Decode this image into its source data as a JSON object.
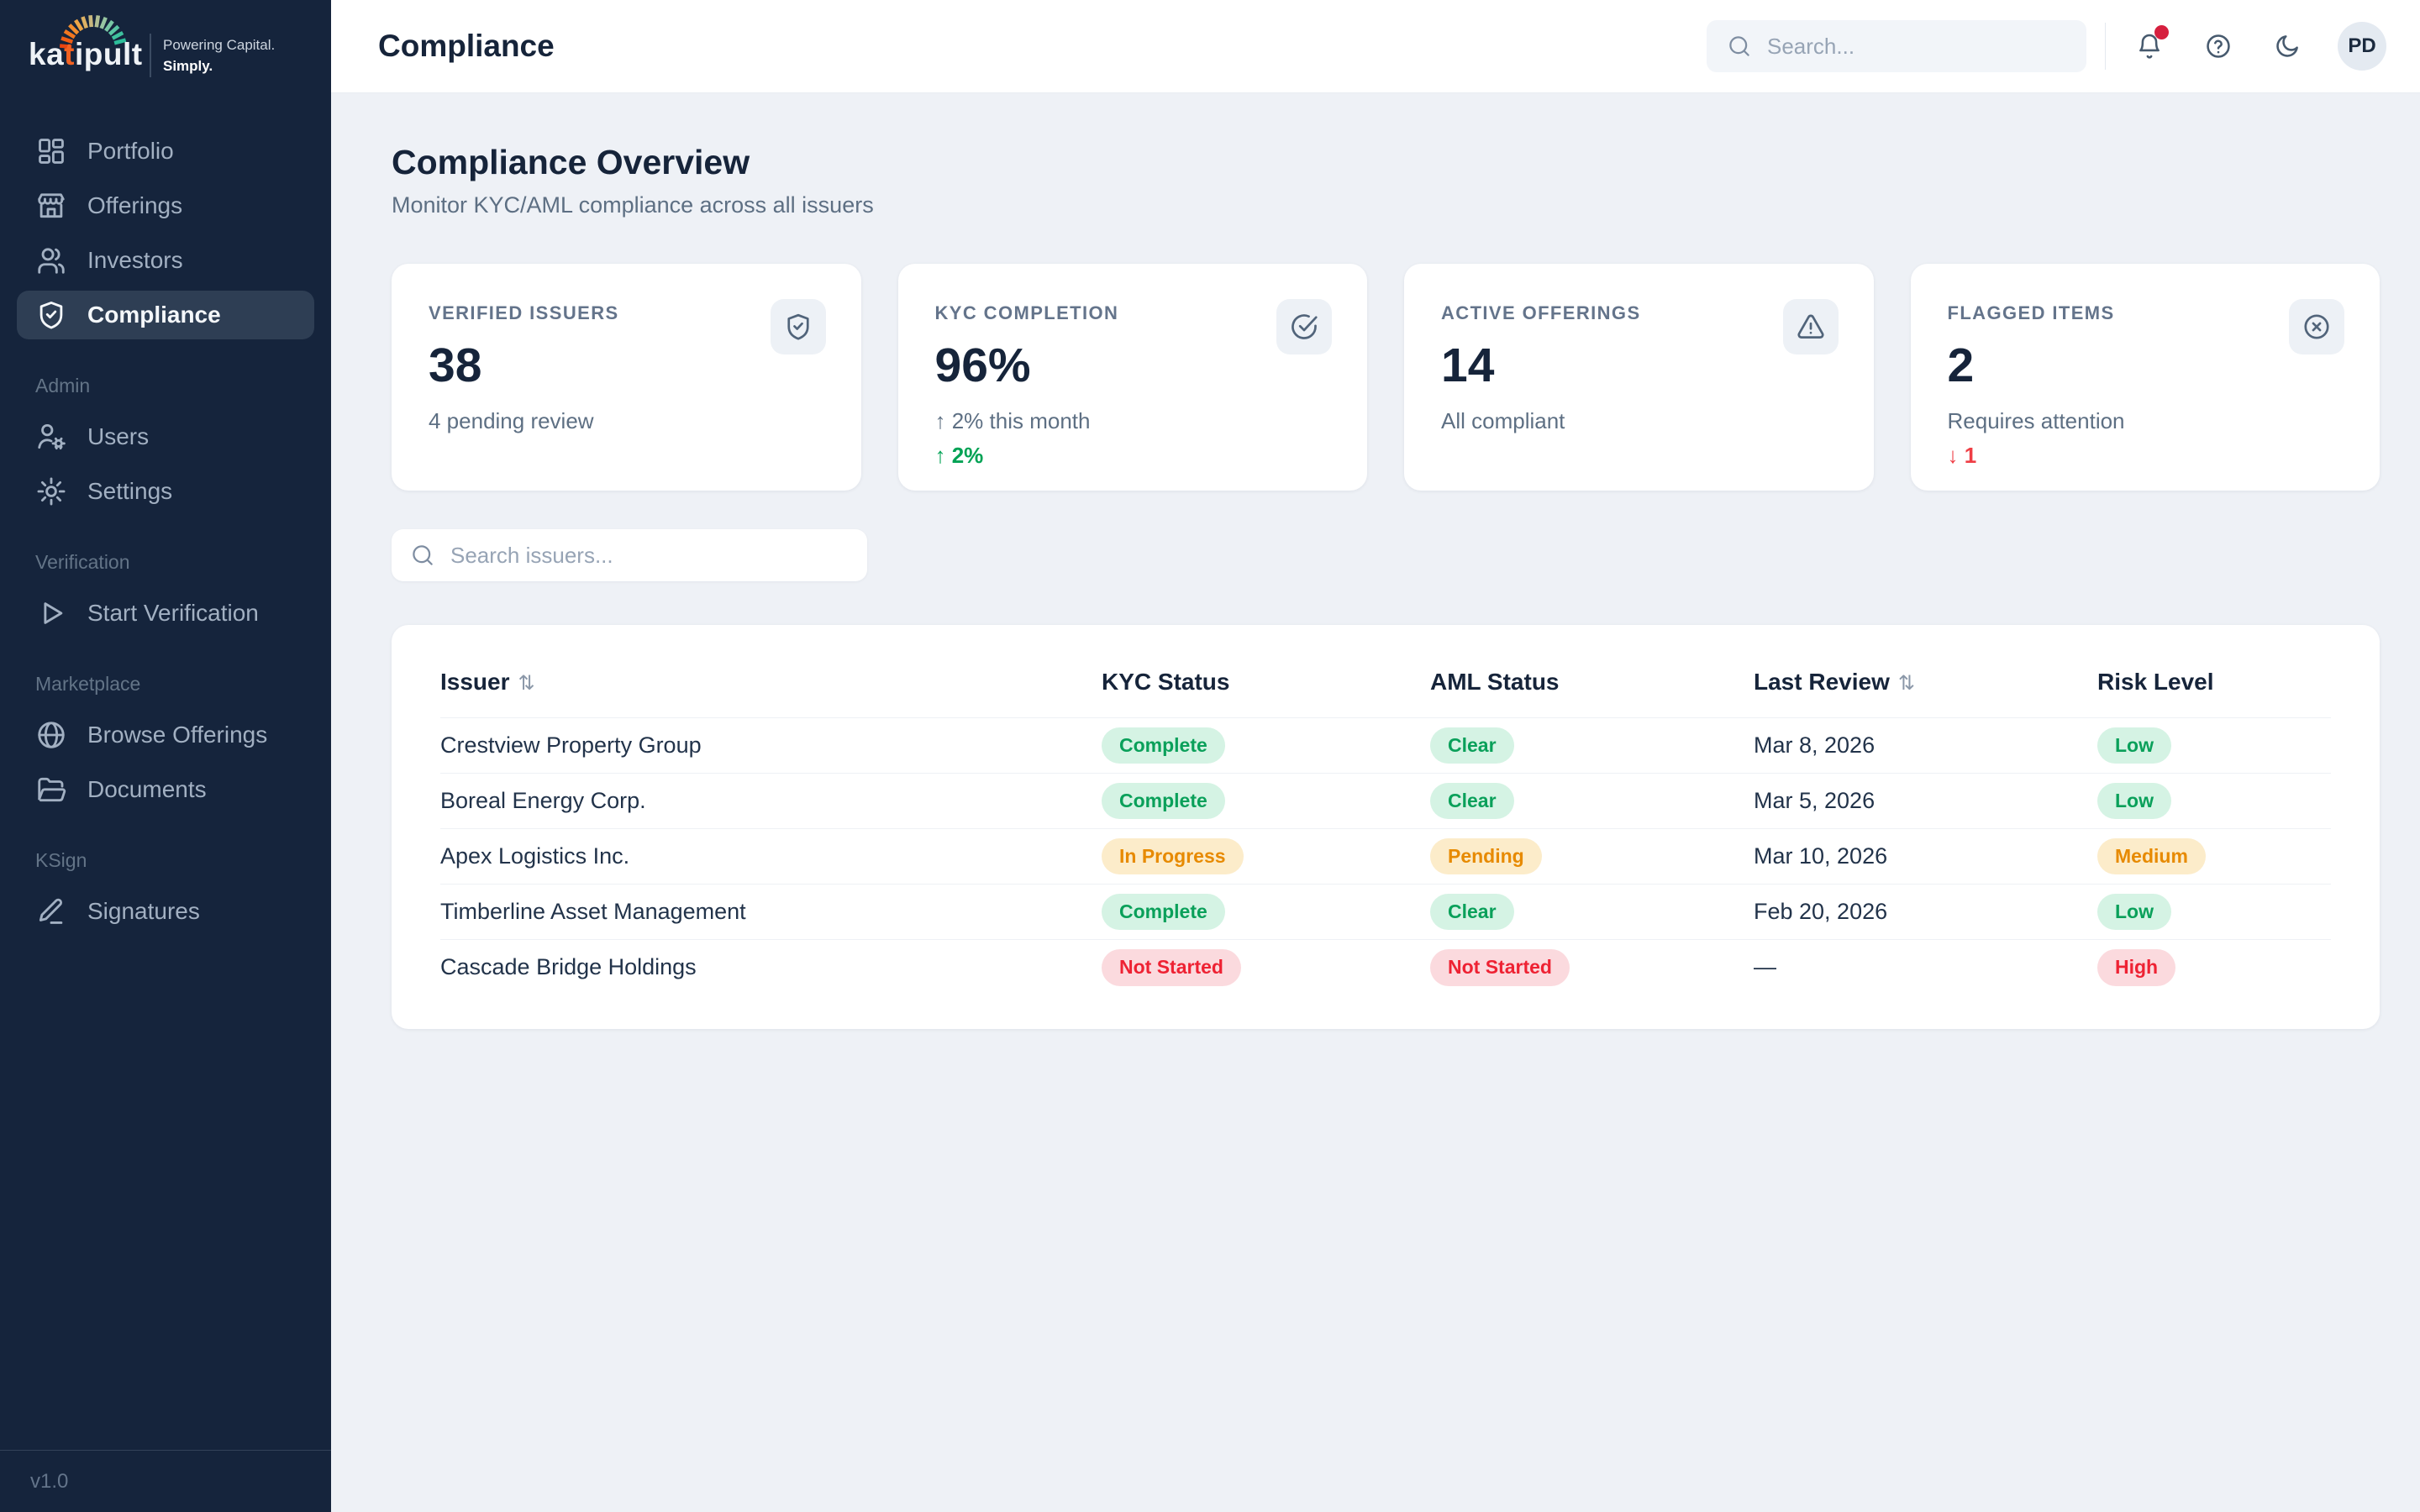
{
  "logo": {
    "brand_prefix": "ka",
    "brand_accent": "t",
    "brand_suffix": "ipult",
    "tagline1": "Powering Capital.",
    "tagline2": "Simply."
  },
  "sidebar": {
    "sections": [
      {
        "label": "",
        "items": [
          {
            "label": "Portfolio",
            "icon": "grid"
          },
          {
            "label": "Offerings",
            "icon": "store"
          },
          {
            "label": "Investors",
            "icon": "users"
          },
          {
            "label": "Compliance",
            "icon": "shield-check",
            "active": true
          }
        ]
      },
      {
        "label": "Admin",
        "items": [
          {
            "label": "Users",
            "icon": "user-gear"
          },
          {
            "label": "Settings",
            "icon": "gear"
          }
        ]
      },
      {
        "label": "Verification",
        "items": [
          {
            "label": "Start Verification",
            "icon": "play"
          }
        ]
      },
      {
        "label": "Marketplace",
        "items": [
          {
            "label": "Browse Offerings",
            "icon": "globe"
          },
          {
            "label": "Documents",
            "icon": "folder"
          }
        ]
      },
      {
        "label": "KSign",
        "items": [
          {
            "label": "Signatures",
            "icon": "pen"
          }
        ]
      }
    ],
    "version": "v1.0"
  },
  "topbar": {
    "title": "Compliance",
    "search_placeholder": "Search...",
    "avatar_initials": "PD"
  },
  "overview": {
    "title": "Compliance Overview",
    "subtitle": "Monitor KYC/AML compliance across all issuers"
  },
  "stat_cards": [
    {
      "label": "VERIFIED ISSUERS",
      "value": "38",
      "sub": "4 pending review",
      "icon": "shield-check"
    },
    {
      "label": "KYC COMPLETION",
      "value": "96%",
      "sub": "↑ 2% this month",
      "trend": "↑ 2%",
      "icon": "circle-check"
    },
    {
      "label": "ACTIVE OFFERINGS",
      "value": "14",
      "sub": "All compliant",
      "icon": "triangle-alert"
    },
    {
      "label": "FLAGGED ITEMS",
      "value": "2",
      "sub": "Requires attention",
      "trend": "↓ 1",
      "icon": "circle-x"
    }
  ],
  "issuer_search": {
    "placeholder": "Search issuers..."
  },
  "table": {
    "columns": [
      {
        "label": "Issuer",
        "sort": "⇅"
      },
      {
        "label": "KYC Status",
        "sort": ""
      },
      {
        "label": "AML Status",
        "sort": ""
      },
      {
        "label": "Last Review",
        "sort": "⇅"
      },
      {
        "label": "Risk Level",
        "sort": ""
      }
    ],
    "rows": [
      {
        "issuer": "Crestview Property Group",
        "kyc": "Complete",
        "kyc_type": "green",
        "aml": "Clear",
        "aml_type": "green",
        "review": "Mar 8, 2026",
        "risk": "Low",
        "risk_type": "green"
      },
      {
        "issuer": "Boreal Energy Corp.",
        "kyc": "Complete",
        "kyc_type": "green",
        "aml": "Clear",
        "aml_type": "green",
        "review": "Mar 5, 2026",
        "risk": "Low",
        "risk_type": "green"
      },
      {
        "issuer": "Apex Logistics Inc.",
        "kyc": "In Progress",
        "kyc_type": "orange",
        "aml": "Pending",
        "aml_type": "orange",
        "review": "Mar 10, 2026",
        "risk": "Medium",
        "risk_type": "orange"
      },
      {
        "issuer": "Timberline Asset Management",
        "kyc": "Complete",
        "kyc_type": "green",
        "aml": "Clear",
        "aml_type": "green",
        "review": "Feb 20, 2026",
        "risk": "Low",
        "risk_type": "green"
      },
      {
        "issuer": "Cascade Bridge Holdings",
        "kyc": "Not Started",
        "kyc_type": "red",
        "aml": "Not Started",
        "aml_type": "red",
        "review": "—",
        "risk": "High",
        "risk_type": "red"
      }
    ]
  },
  "colors": {
    "sidebar_bg": "#15243c",
    "active_item_bg": "#2e3e54",
    "content_bg": "#eef1f6",
    "accent_orange": "#f26222",
    "status_green": "#0aa05a",
    "status_orange": "#e78a00",
    "status_red": "#ee2233",
    "trend_up": "#00a254",
    "trend_down": "#ef3e45",
    "notification_dot": "#d61f3e"
  }
}
